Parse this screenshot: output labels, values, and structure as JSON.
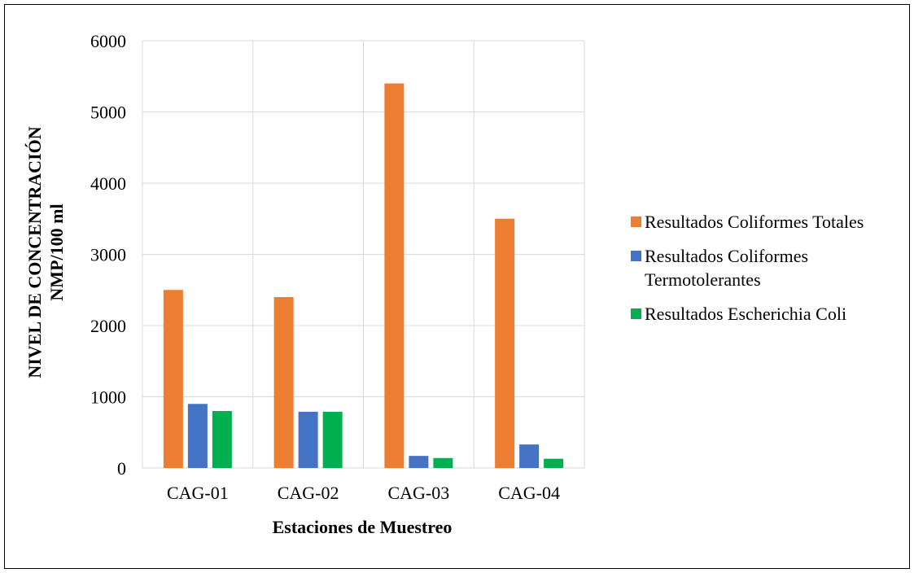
{
  "chart_data": {
    "type": "bar",
    "categories": [
      "CAG-01",
      "CAG-02",
      "CAG-03",
      "CAG-04"
    ],
    "series": [
      {
        "name": "Resultados Coliformes Totales",
        "values": [
          2500,
          2400,
          5400,
          3500
        ],
        "color": "#ED7D31"
      },
      {
        "name": "Resultados Coliformes Termotolerantes",
        "values": [
          900,
          790,
          170,
          330
        ],
        "color": "#4472C4"
      },
      {
        "name": "Resultados Escherichia Coli",
        "values": [
          800,
          790,
          140,
          130
        ],
        "color": "#00B050"
      }
    ],
    "xlabel": "Estaciones de Muestreo",
    "ylabel_line1": "NIVEL DE CONCENTRACIÓN",
    "ylabel_line2": "NMP/100 ml",
    "ylim": [
      0,
      6000
    ],
    "yticks": [
      "0",
      "1000",
      "2000",
      "3000",
      "4000",
      "5000",
      "6000"
    ],
    "grid": true,
    "legend_position": "right"
  }
}
